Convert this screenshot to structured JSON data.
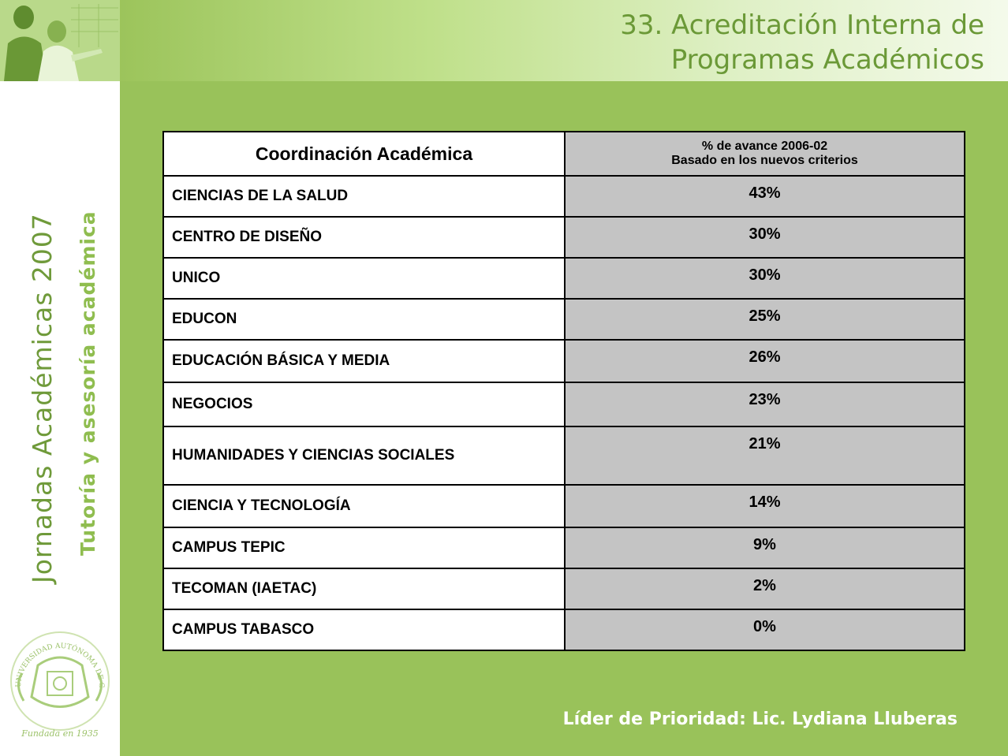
{
  "header": {
    "title_line1": "33. Acreditación Interna de",
    "title_line2": "Programas Académicos"
  },
  "sidebar": {
    "event_name": "Jornadas Académicas 2007",
    "event_subtitle": "Tutoría y asesoría académica",
    "seal_text": "UNIVERSIDAD AUTÓNOMA DE GUADALAJARA",
    "seal_founded": "Fundada en 1935"
  },
  "table": {
    "col1_header": "Coordinación Académica",
    "col2_header_line1": "% de avance 2006-02",
    "col2_header_line2": "Basado en los nuevos criterios",
    "rows": [
      {
        "coordinacion": "CIENCIAS DE LA SALUD",
        "avance": "43%"
      },
      {
        "coordinacion": "CENTRO DE DISEÑO",
        "avance": "30%"
      },
      {
        "coordinacion": "UNICO",
        "avance": "30%"
      },
      {
        "coordinacion": "EDUCON",
        "avance": "25%"
      },
      {
        "coordinacion": "EDUCACIÓN BÁSICA Y MEDIA",
        "avance": "26%"
      },
      {
        "coordinacion": "NEGOCIOS",
        "avance": "23%"
      },
      {
        "coordinacion": "HUMANIDADES Y CIENCIAS SOCIALES",
        "avance": "21%"
      },
      {
        "coordinacion": "CIENCIA Y TECNOLOGÍA",
        "avance": "14%"
      },
      {
        "coordinacion": "CAMPUS TEPIC",
        "avance": "9%"
      },
      {
        "coordinacion": "TECOMAN (IAETAC)",
        "avance": "2%"
      },
      {
        "coordinacion": "CAMPUS TABASCO",
        "avance": "0%"
      }
    ]
  },
  "footer": {
    "leader": "Líder de Prioridad: Lic. Lydiana Lluberas"
  },
  "colors": {
    "background": "#99c25a",
    "title": "#6b9937",
    "sidebar_text": "#6f9a3a",
    "cell_gray": "#c4c4c4"
  }
}
